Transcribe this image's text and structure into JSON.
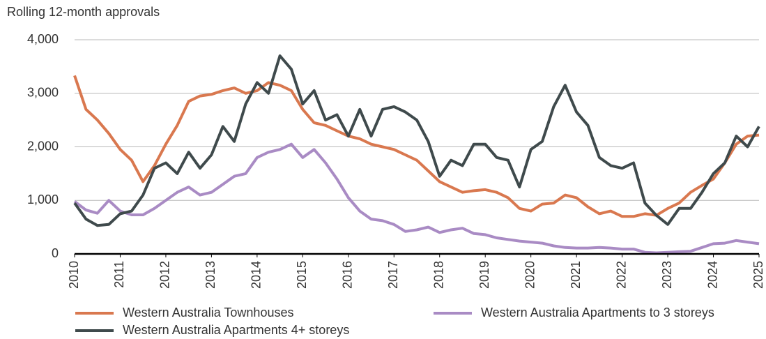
{
  "chart_data": {
    "type": "line",
    "y_axis_label": "Rolling 12-month approvals",
    "x": [
      2010,
      2010.25,
      2010.5,
      2010.75,
      2011,
      2011.25,
      2011.5,
      2011.75,
      2012,
      2012.25,
      2012.5,
      2012.75,
      2013,
      2013.25,
      2013.5,
      2013.75,
      2014,
      2014.25,
      2014.5,
      2014.75,
      2015,
      2015.25,
      2015.5,
      2015.75,
      2016,
      2016.25,
      2016.5,
      2016.75,
      2017,
      2017.25,
      2017.5,
      2017.75,
      2018,
      2018.25,
      2018.5,
      2018.75,
      2019,
      2019.25,
      2019.5,
      2019.75,
      2020,
      2020.25,
      2020.5,
      2020.75,
      2021,
      2021.25,
      2021.5,
      2021.75,
      2022,
      2022.25,
      2022.5,
      2022.75,
      2023,
      2023.25,
      2023.5,
      2023.75,
      2024,
      2024.25,
      2024.5,
      2024.75,
      2025
    ],
    "series": [
      {
        "name": "Western Australia Townhouses",
        "color": "#d9784f",
        "values": [
          3330,
          2700,
          2500,
          2250,
          1950,
          1750,
          1350,
          1650,
          2050,
          2400,
          2850,
          2950,
          2980,
          3050,
          3100,
          3000,
          3050,
          3200,
          3150,
          3050,
          2700,
          2450,
          2400,
          2300,
          2200,
          2150,
          2050,
          2000,
          1950,
          1850,
          1750,
          1550,
          1350,
          1250,
          1150,
          1180,
          1200,
          1150,
          1050,
          850,
          800,
          930,
          950,
          1100,
          1050,
          880,
          750,
          800,
          700,
          700,
          750,
          720,
          850,
          950,
          1150,
          1280,
          1400,
          1700,
          2050,
          2200,
          2220
        ]
      },
      {
        "name": "Western Australia Apartments to 3 storeys",
        "color": "#a98bc4",
        "values": [
          980,
          820,
          760,
          1000,
          800,
          730,
          730,
          850,
          1000,
          1150,
          1250,
          1100,
          1150,
          1300,
          1450,
          1500,
          1800,
          1900,
          1950,
          2050,
          1800,
          1950,
          1700,
          1400,
          1050,
          800,
          650,
          620,
          550,
          420,
          450,
          500,
          400,
          450,
          480,
          380,
          360,
          300,
          270,
          240,
          220,
          200,
          150,
          120,
          110,
          110,
          120,
          110,
          90,
          90,
          30,
          20,
          30,
          40,
          50,
          120,
          190,
          200,
          250,
          220,
          190
        ]
      },
      {
        "name": "Western Australia Apartments 4+ storeys",
        "color": "#3f4a4c",
        "values": [
          950,
          650,
          530,
          550,
          750,
          800,
          1100,
          1600,
          1700,
          1500,
          1900,
          1600,
          1850,
          2380,
          2100,
          2800,
          3200,
          3000,
          3700,
          3450,
          2800,
          3050,
          2500,
          2600,
          2200,
          2700,
          2200,
          2700,
          2750,
          2650,
          2500,
          2100,
          1450,
          1750,
          1650,
          2050,
          2050,
          1800,
          1750,
          1250,
          1950,
          2100,
          2750,
          3150,
          2650,
          2400,
          1800,
          1650,
          1600,
          1700,
          950,
          720,
          550,
          850,
          850,
          1150,
          1500,
          1700,
          2200,
          2000,
          2380
        ]
      }
    ],
    "xlim": [
      2010,
      2025
    ],
    "xticks": [
      2010,
      2011,
      2012,
      2013,
      2014,
      2015,
      2016,
      2017,
      2018,
      2019,
      2020,
      2021,
      2022,
      2023,
      2024,
      2025
    ],
    "ylim": [
      0,
      4000
    ],
    "yticks": [
      0,
      {
        "value": 1000,
        "label": "1,000"
      },
      {
        "value": 2000,
        "label": "2,000"
      },
      {
        "value": 3000,
        "label": "3,000"
      },
      {
        "value": 4000,
        "label": "4,000"
      }
    ],
    "grid": true
  }
}
